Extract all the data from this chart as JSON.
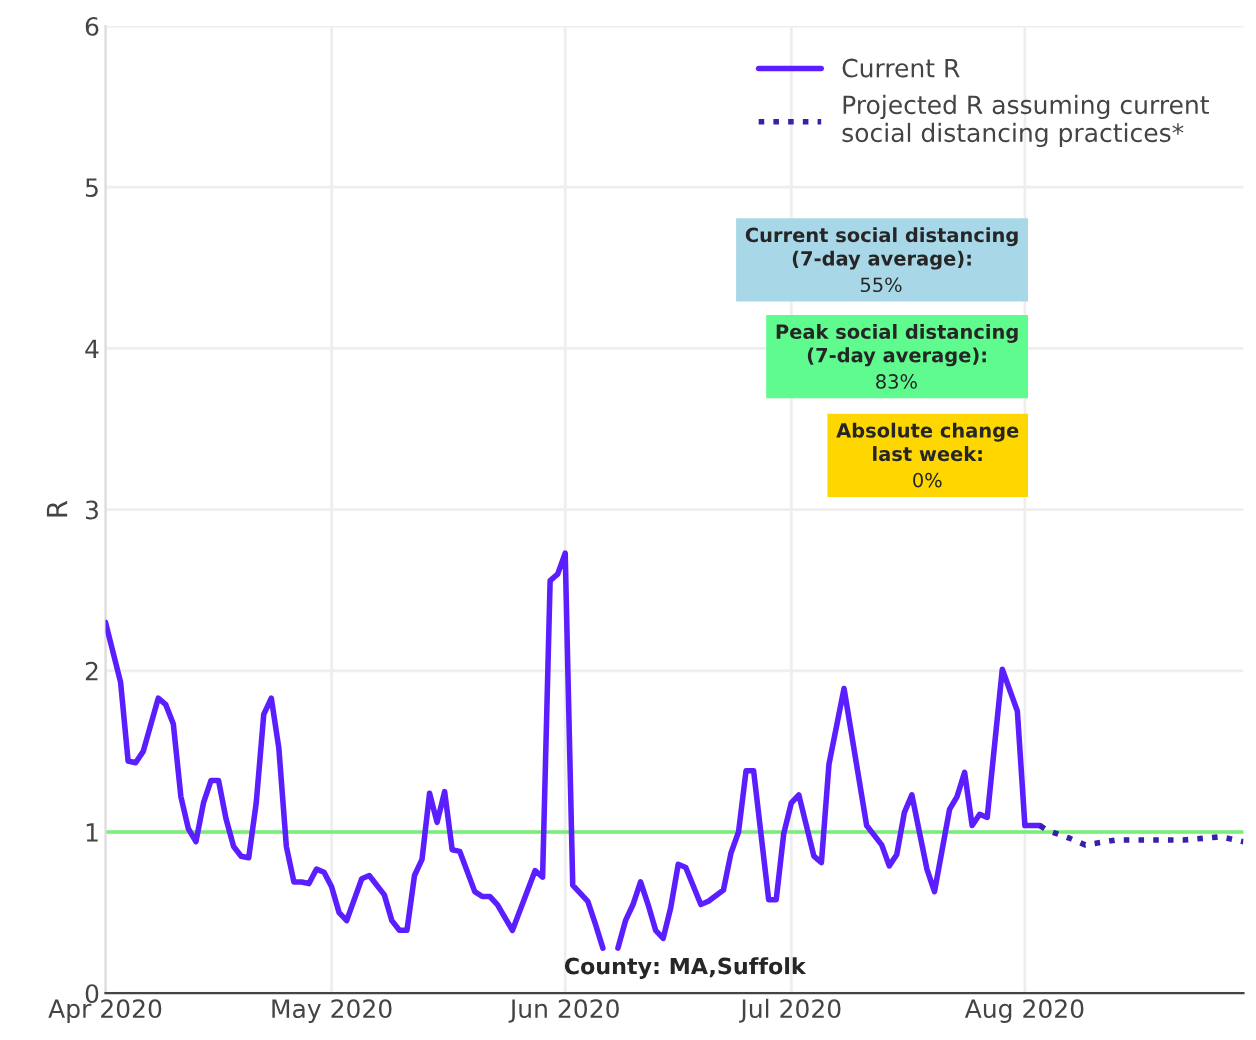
{
  "chart_data": {
    "type": "line",
    "ylabel": "R",
    "xlim": [
      "2020-04-01",
      "2020-08-30"
    ],
    "xticks": [
      {
        "value": "2020-04-01",
        "label": "Apr 2020"
      },
      {
        "value": "2020-05-01",
        "label": "May 2020"
      },
      {
        "value": "2020-06-01",
        "label": "Jun 2020"
      },
      {
        "value": "2020-07-01",
        "label": "Jul 2020"
      },
      {
        "value": "2020-08-01",
        "label": "Aug 2020"
      }
    ],
    "ylim": [
      0,
      6
    ],
    "yticks": [
      0,
      1,
      2,
      3,
      4,
      5,
      6
    ],
    "grid": true,
    "legend": "top right",
    "series": [
      {
        "name": "Current R",
        "color": "#5b1fff",
        "line_style": "solid",
        "x": [
          "2020-04-01",
          "2020-04-03",
          "2020-04-04",
          "2020-04-05",
          "2020-04-06",
          "2020-04-08",
          "2020-04-09",
          "2020-04-10",
          "2020-04-11",
          "2020-04-12",
          "2020-04-13",
          "2020-04-14",
          "2020-04-15",
          "2020-04-16",
          "2020-04-17",
          "2020-04-18",
          "2020-04-19",
          "2020-04-20",
          "2020-04-21",
          "2020-04-22",
          "2020-04-23",
          "2020-04-24",
          "2020-04-25",
          "2020-04-26",
          "2020-04-27",
          "2020-04-28",
          "2020-04-29",
          "2020-04-30",
          "2020-05-01",
          "2020-05-02",
          "2020-05-03",
          "2020-05-05",
          "2020-05-06",
          "2020-05-08",
          "2020-05-09",
          "2020-05-10",
          "2020-05-11",
          "2020-05-12",
          "2020-05-13",
          "2020-05-14",
          "2020-05-15",
          "2020-05-16",
          "2020-05-17",
          "2020-05-18",
          "2020-05-20",
          "2020-05-21",
          "2020-05-22",
          "2020-05-23",
          "2020-05-25",
          "2020-05-28",
          "2020-05-29",
          "2020-05-30",
          "2020-05-31",
          "2020-06-01",
          "2020-06-02",
          "2020-06-04",
          "2020-06-05",
          "2020-06-06",
          "2020-06-07",
          "2020-06-08",
          "2020-06-09",
          "2020-06-10",
          "2020-06-11",
          "2020-06-12",
          "2020-06-13",
          "2020-06-14",
          "2020-06-15",
          "2020-06-16",
          "2020-06-17",
          "2020-06-19",
          "2020-06-20",
          "2020-06-22",
          "2020-06-23",
          "2020-06-24",
          "2020-06-25",
          "2020-06-26",
          "2020-06-28",
          "2020-06-29",
          "2020-06-30",
          "2020-07-01",
          "2020-07-02",
          "2020-07-04",
          "2020-07-05",
          "2020-07-06",
          "2020-07-08",
          "2020-07-11",
          "2020-07-13",
          "2020-07-14",
          "2020-07-15",
          "2020-07-16",
          "2020-07-17",
          "2020-07-19",
          "2020-07-20",
          "2020-07-22",
          "2020-07-23",
          "2020-07-24",
          "2020-07-25",
          "2020-07-26",
          "2020-07-27",
          "2020-07-29",
          "2020-07-31",
          "2020-08-01",
          "2020-08-03"
        ],
        "values": [
          2.3,
          1.93,
          1.44,
          1.43,
          1.5,
          1.83,
          1.79,
          1.67,
          1.22,
          1.02,
          0.94,
          1.18,
          1.32,
          1.32,
          1.08,
          0.91,
          0.85,
          0.84,
          1.18,
          1.73,
          1.83,
          1.52,
          0.91,
          0.69,
          0.69,
          0.68,
          0.77,
          0.75,
          0.66,
          0.5,
          0.45,
          0.71,
          0.73,
          0.61,
          0.45,
          0.39,
          0.39,
          0.73,
          0.83,
          1.24,
          1.06,
          1.25,
          0.89,
          0.88,
          0.63,
          0.6,
          0.6,
          0.55,
          0.39,
          0.76,
          0.72,
          2.56,
          2.6,
          2.73,
          0.67,
          0.57,
          0.43,
          0.28,
          null,
          0.28,
          0.45,
          0.55,
          0.69,
          0.55,
          0.39,
          0.34,
          0.53,
          0.8,
          0.78,
          0.55,
          0.57,
          0.64,
          0.87,
          1.0,
          1.38,
          1.38,
          0.58,
          0.58,
          0.99,
          1.18,
          1.23,
          0.85,
          0.81,
          1.42,
          1.89,
          1.04,
          0.92,
          0.79,
          0.86,
          1.12,
          1.23,
          0.77,
          0.63,
          1.14,
          1.22,
          1.37,
          1.04,
          1.11,
          1.09,
          2.01,
          1.75,
          1.04,
          1.04
        ]
      },
      {
        "name": "Projected R assuming current social distancing practices*",
        "color": "#3a1fa8",
        "line_style": "dotted",
        "x": [
          "2020-08-03",
          "2020-08-04",
          "2020-08-07",
          "2020-08-09",
          "2020-08-13",
          "2020-08-18",
          "2020-08-22",
          "2020-08-27",
          "2020-08-30"
        ],
        "values": [
          1.04,
          1.01,
          0.96,
          0.92,
          0.95,
          0.95,
          0.95,
          0.97,
          0.94
        ]
      }
    ],
    "ref_lines": [
      {
        "axis": "y",
        "value": 1,
        "color": "#77ee77",
        "line_style": "solid"
      }
    ],
    "annotations": [
      "Current social distancing\n(7-day average):\n55%",
      "Peak social distancing\n(7-day average):\n83%",
      "Absolute change\nlast week:\n0%",
      "County: MA,Suffolk"
    ]
  }
}
